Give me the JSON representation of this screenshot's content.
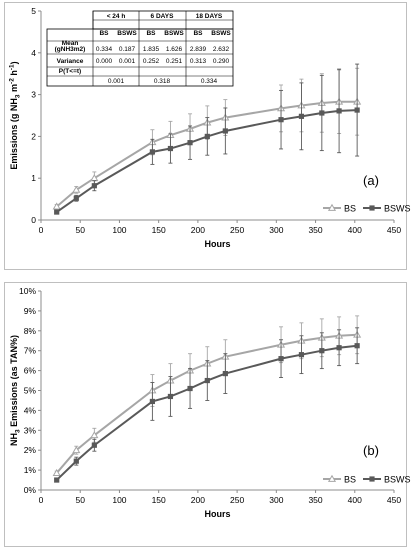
{
  "chart_data": [
    {
      "type": "line",
      "panel_label": "(a)",
      "xlabel": "Hours",
      "ylabel": "Emissions (g NH3 m-2 h-1)",
      "ylabel_parts": [
        "Emissions (g NH",
        "3",
        " m",
        "-2",
        " h",
        "-1",
        ")"
      ],
      "xlim": [
        0,
        450
      ],
      "ylim": [
        0,
        5
      ],
      "x_ticks": [
        0,
        50,
        100,
        150,
        200,
        250,
        300,
        350,
        400,
        450
      ],
      "y_ticks": [
        0,
        1,
        2,
        3,
        4,
        5
      ],
      "y_tick_labels": [
        "0",
        "1",
        "2",
        "3",
        "4",
        "5"
      ],
      "grid": false,
      "legend_position": "right",
      "x": [
        20,
        45,
        68,
        142,
        165,
        190,
        212,
        235,
        306,
        332,
        358,
        380,
        403
      ],
      "series": [
        {
          "name": "BS",
          "color": "#a6a6a6",
          "marker": "triangle",
          "values": [
            0.32,
            0.72,
            1.0,
            1.86,
            2.03,
            2.18,
            2.33,
            2.45,
            2.67,
            2.74,
            2.8,
            2.83,
            2.83
          ],
          "err": [
            0.05,
            0.08,
            0.15,
            0.3,
            0.33,
            0.36,
            0.4,
            0.43,
            0.56,
            0.63,
            0.7,
            0.76,
            0.8
          ]
        },
        {
          "name": "BSWS",
          "color": "#595959",
          "marker": "square",
          "values": [
            0.19,
            0.52,
            0.82,
            1.63,
            1.71,
            1.85,
            2.0,
            2.13,
            2.4,
            2.48,
            2.56,
            2.61,
            2.63
          ],
          "err": [
            0.04,
            0.07,
            0.12,
            0.3,
            0.35,
            0.4,
            0.45,
            0.55,
            0.7,
            0.8,
            0.9,
            1.0,
            1.1
          ]
        }
      ],
      "table": {
        "headers": [
          "< 24 h",
          "6 DAYS",
          "18 DAYS"
        ],
        "subheaders": [
          "BS",
          "BSWS",
          "BS",
          "BSWS",
          "BS",
          "BSWS"
        ],
        "rows": [
          {
            "label": "Mean",
            "cells": [
              "",
              "",
              "",
              "",
              "",
              ""
            ]
          },
          {
            "label": "(gNH3m2)",
            "cells": [
              "0.334",
              "0.187",
              "1.835",
              "1.626",
              "2.839",
              "2.632"
            ]
          },
          {
            "label": "Variance",
            "cells": [
              "0.000",
              "0.001",
              "0.252",
              "0.251",
              "0.313",
              "0.290"
            ]
          },
          {
            "label": "P(T<=t)",
            "cells": [
              "0.001",
              "0.318",
              "0.334"
            ]
          }
        ]
      }
    },
    {
      "type": "line",
      "panel_label": "(b)",
      "xlabel": "Hours",
      "ylabel": "NH3 Emissions (as TAN%)",
      "ylabel_parts": [
        "NH",
        "3",
        " Emissions (as TAN%)"
      ],
      "xlim": [
        0,
        450
      ],
      "ylim": [
        0,
        10
      ],
      "x_ticks": [
        0,
        50,
        100,
        150,
        200,
        250,
        300,
        350,
        400,
        450
      ],
      "y_ticks": [
        0,
        1,
        2,
        3,
        4,
        5,
        6,
        7,
        8,
        9,
        10
      ],
      "y_tick_labels": [
        "0%",
        "1%",
        "2%",
        "3%",
        "4%",
        "5%",
        "6%",
        "7%",
        "8%",
        "9%",
        "10%"
      ],
      "grid": false,
      "legend_position": "bottom-right",
      "x": [
        20,
        45,
        68,
        142,
        165,
        190,
        212,
        235,
        306,
        332,
        358,
        380,
        403
      ],
      "series": [
        {
          "name": "BS",
          "color": "#a6a6a6",
          "marker": "triangle",
          "values": [
            0.85,
            2.0,
            2.75,
            5.0,
            5.5,
            6.0,
            6.35,
            6.7,
            7.3,
            7.5,
            7.65,
            7.75,
            7.8
          ],
          "err": [
            0.1,
            0.2,
            0.35,
            0.8,
            0.85,
            0.85,
            0.85,
            0.85,
            0.9,
            0.9,
            0.95,
            0.95,
            0.95
          ]
        },
        {
          "name": "BSWS",
          "color": "#595959",
          "marker": "square",
          "values": [
            0.5,
            1.45,
            2.25,
            4.45,
            4.7,
            5.1,
            5.5,
            5.85,
            6.6,
            6.8,
            7.0,
            7.15,
            7.25
          ],
          "err": [
            0.08,
            0.2,
            0.3,
            0.95,
            1.0,
            1.0,
            1.0,
            1.0,
            0.95,
            0.95,
            0.9,
            0.9,
            0.9
          ]
        }
      ]
    }
  ]
}
